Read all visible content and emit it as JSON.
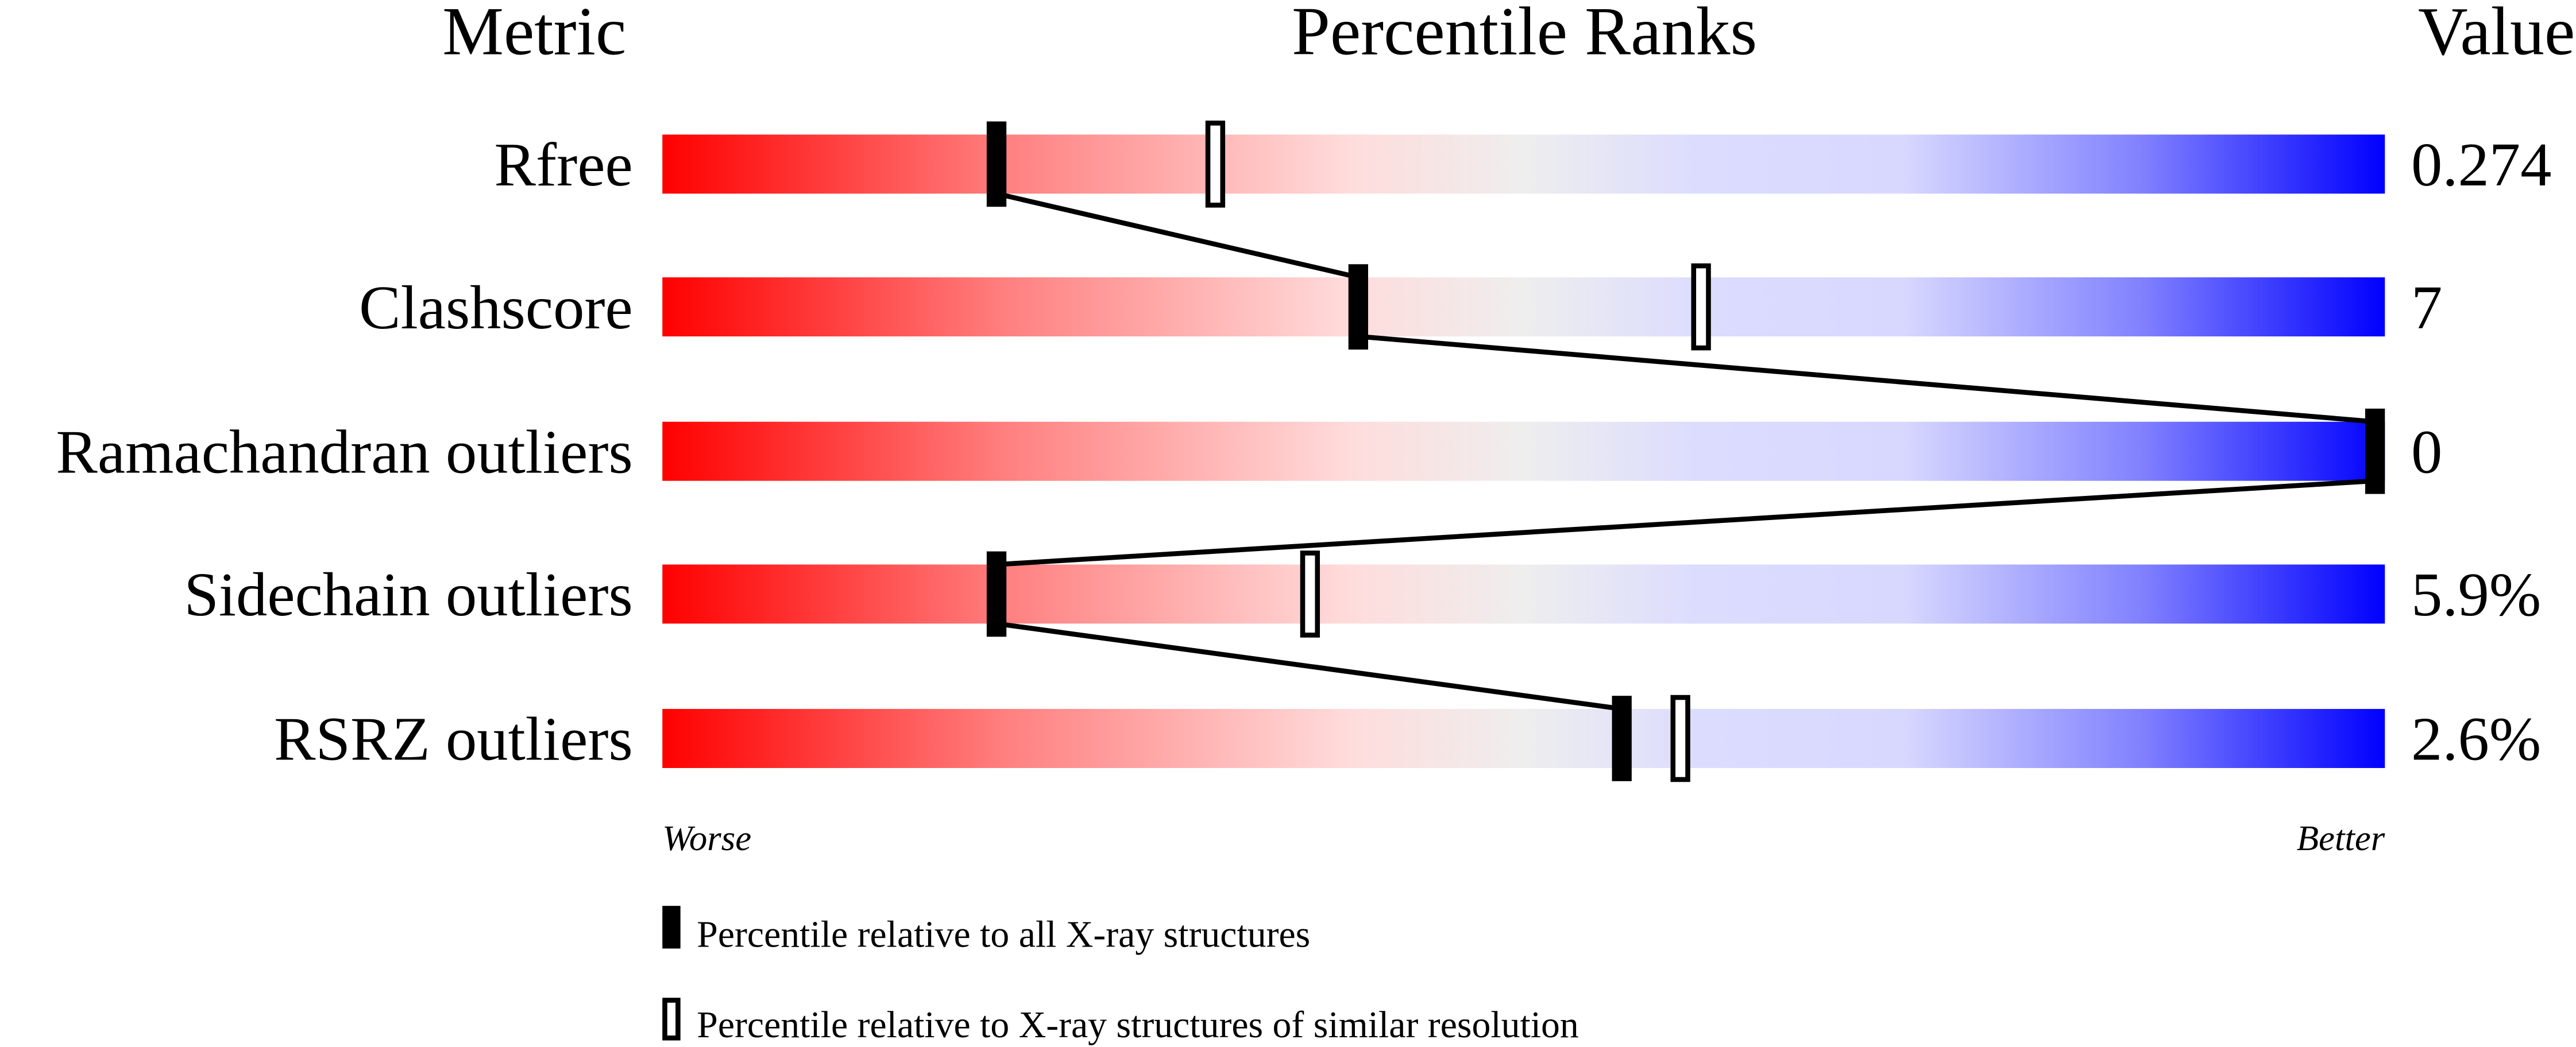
{
  "chart_data": {
    "type": "bar",
    "title": "",
    "headers": {
      "metric": "Metric",
      "ranks": "Percentile Ranks",
      "value": "Value"
    },
    "xlim": [
      0,
      100
    ],
    "axis_labels": {
      "left": "Worse",
      "right": "Better"
    },
    "metrics": [
      {
        "name": "Rfree",
        "value": "0.274",
        "percentile_all": 19.4,
        "percentile_similar": 32.1
      },
      {
        "name": "Clashscore",
        "value": "7",
        "percentile_all": 40.4,
        "percentile_similar": 60.3
      },
      {
        "name": "Ramachandran outliers",
        "value": "0",
        "percentile_all": 100,
        "percentile_similar": 100
      },
      {
        "name": "Sidechain outliers",
        "value": "5.9%",
        "percentile_all": 19.4,
        "percentile_similar": 37.6
      },
      {
        "name": "RSRZ outliers",
        "value": "2.6%",
        "percentile_all": 55.7,
        "percentile_similar": 59.1
      }
    ],
    "legend": {
      "filled": "Percentile relative to all X-ray structures",
      "open": "Percentile relative to X-ray structures of similar resolution",
      "placement": "bottom"
    },
    "colors": {
      "worse": "#ff0000",
      "middle": "#eeeeee",
      "better": "#0000ff",
      "marker": "#000000"
    }
  }
}
